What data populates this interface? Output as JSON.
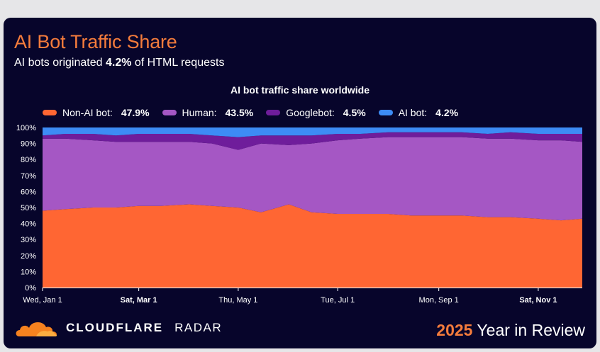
{
  "title": "AI Bot Traffic Share",
  "subtitle": {
    "prefix": "AI bots originated ",
    "value": "4.2%",
    "suffix": " of HTML requests"
  },
  "footer": {
    "brand": "CLOUDFLARE",
    "product": "RADAR",
    "year": "2025",
    "tagline": " Year in Review"
  },
  "colors": {
    "non_ai_bot": "#ff6633",
    "human": "#a557c4",
    "googlebot": "#6f1d9b",
    "ai_bot": "#3d8cf5",
    "accent": "#f47c3c",
    "background": "#07052b"
  },
  "chart_data": {
    "type": "area",
    "stacked": true,
    "title": "AI bot traffic share worldwide",
    "x_range": [
      "2025-01-01",
      "2025-11-28"
    ],
    "ylim": [
      0,
      100
    ],
    "y_ticks": [
      "0%",
      "10%",
      "20%",
      "30%",
      "40%",
      "50%",
      "60%",
      "70%",
      "80%",
      "90%",
      "100%"
    ],
    "x_ticks": [
      {
        "date": "2025-01-01",
        "label": "Wed, Jan 1",
        "bold": false
      },
      {
        "date": "2025-03-01",
        "label": "Sat, Mar 1",
        "bold": true
      },
      {
        "date": "2025-05-01",
        "label": "Thu, May 1",
        "bold": false
      },
      {
        "date": "2025-07-01",
        "label": "Tue, Jul 1",
        "bold": false
      },
      {
        "date": "2025-09-01",
        "label": "Mon, Sep 1",
        "bold": false
      },
      {
        "date": "2025-11-01",
        "label": "Sat, Nov 1",
        "bold": true
      }
    ],
    "legend": [
      {
        "key": "non_ai_bot",
        "label": "Non-AI bot:",
        "value": "47.9%"
      },
      {
        "key": "human",
        "label": "Human:",
        "value": "43.5%"
      },
      {
        "key": "googlebot",
        "label": "Googlebot:",
        "value": "4.5%"
      },
      {
        "key": "ai_bot",
        "label": "AI bot:",
        "value": "4.2%"
      }
    ],
    "x": [
      "2025-01-01",
      "2025-01-15",
      "2025-02-01",
      "2025-02-15",
      "2025-03-01",
      "2025-03-15",
      "2025-04-01",
      "2025-04-15",
      "2025-05-01",
      "2025-05-15",
      "2025-06-01",
      "2025-06-15",
      "2025-07-01",
      "2025-07-15",
      "2025-08-01",
      "2025-08-15",
      "2025-09-01",
      "2025-09-15",
      "2025-10-01",
      "2025-10-15",
      "2025-11-01",
      "2025-11-15",
      "2025-11-28"
    ],
    "series": [
      {
        "name": "Non-AI bot",
        "key": "non_ai_bot",
        "values": [
          48,
          49,
          50,
          50,
          51,
          51,
          52,
          51,
          50,
          47,
          52,
          47,
          46,
          46,
          46,
          45,
          45,
          45,
          44,
          44,
          43,
          42,
          43
        ]
      },
      {
        "name": "Human",
        "key": "human",
        "values": [
          45,
          44,
          42,
          41,
          40,
          40,
          39,
          39,
          36,
          43,
          37,
          43,
          46,
          47,
          48,
          49,
          49,
          49,
          49,
          49,
          49,
          50,
          48
        ]
      },
      {
        "name": "Googlebot",
        "key": "googlebot",
        "values": [
          2,
          3,
          4,
          4,
          5,
          5,
          5,
          5,
          8,
          5,
          6,
          5,
          4,
          3,
          3,
          3,
          3,
          3,
          3,
          4,
          4,
          4,
          5
        ]
      },
      {
        "name": "AI bot",
        "key": "ai_bot",
        "values": [
          5,
          4,
          4,
          5,
          4,
          4,
          4,
          5,
          6,
          5,
          5,
          5,
          4,
          4,
          3,
          3,
          3,
          3,
          4,
          3,
          4,
          4,
          4
        ]
      }
    ]
  }
}
